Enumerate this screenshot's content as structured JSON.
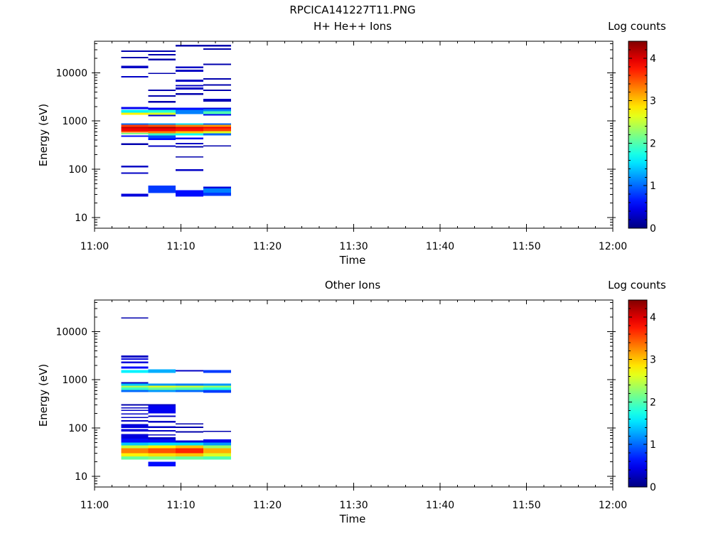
{
  "figure_title": "RPCICA141227T11.PNG",
  "chart_data": [
    {
      "type": "heatmap",
      "title": "H+ He++ Ions",
      "xlabel": "Time",
      "ylabel": "Energy (eV)",
      "colorbar_label": "Log counts",
      "x_ticks": [
        "11:00",
        "11:10",
        "11:20",
        "11:30",
        "11:40",
        "11:50",
        "12:00"
      ],
      "x_range_minutes": [
        0,
        60
      ],
      "y_ticks": [
        "10",
        "100",
        "1000",
        "10000"
      ],
      "y_scale": "log",
      "y_range": [
        6,
        45000
      ],
      "colorbar_ticks": [
        "0",
        "1",
        "2",
        "3",
        "4"
      ],
      "colorbar_range": [
        0,
        4.4
      ],
      "colormap": "jet",
      "columns": [
        {
          "t_start": 3.1,
          "t_end": 6.2,
          "cells": [
            [
              27,
              31,
              0.4
            ],
            [
              80,
              86,
              0.3
            ],
            [
              110,
              118,
              0.3
            ],
            [
              320,
              345,
              0.2
            ],
            [
              470,
              500,
              0.6
            ],
            [
              530,
              570,
              2.2
            ],
            [
              580,
              620,
              3.4
            ],
            [
              620,
              700,
              3.9
            ],
            [
              700,
              760,
              4.1
            ],
            [
              760,
              830,
              3.6
            ],
            [
              830,
              900,
              1.0
            ],
            [
              1350,
              1500,
              2.8
            ],
            [
              1500,
              1700,
              1.6
            ],
            [
              1750,
              1950,
              0.5
            ],
            [
              8000,
              8600,
              0.3
            ],
            [
              12500,
              14000,
              0.3
            ],
            [
              20000,
              21500,
              0.2
            ],
            [
              27000,
              29000,
              0.2
            ]
          ]
        },
        {
          "t_start": 6.2,
          "t_end": 9.4,
          "cells": [
            [
              32,
              46,
              0.8
            ],
            [
              290,
              310,
              0.3
            ],
            [
              400,
              440,
              0.6
            ],
            [
              440,
              500,
              0.9
            ],
            [
              500,
              560,
              1.9
            ],
            [
              560,
              620,
              3.3
            ],
            [
              620,
              700,
              3.9
            ],
            [
              700,
              760,
              4.2
            ],
            [
              760,
              830,
              3.5
            ],
            [
              830,
              900,
              1.2
            ],
            [
              1250,
              1350,
              0.4
            ],
            [
              1350,
              1500,
              2.6
            ],
            [
              1500,
              1700,
              1.8
            ],
            [
              1700,
              1900,
              0.5
            ],
            [
              2400,
              2600,
              0.2
            ],
            [
              3200,
              3400,
              0.2
            ],
            [
              4200,
              4500,
              0.2
            ],
            [
              9500,
              10000,
              0.2
            ],
            [
              18000,
              19500,
              0.2
            ],
            [
              23000,
              24500,
              0.2
            ],
            [
              27000,
              29000,
              0.2
            ]
          ]
        },
        {
          "t_start": 9.4,
          "t_end": 12.6,
          "cells": [
            [
              27,
              37,
              0.6
            ],
            [
              92,
              100,
              0.3
            ],
            [
              175,
              185,
              0.2
            ],
            [
              280,
              300,
              0.2
            ],
            [
              330,
              350,
              0.3
            ],
            [
              420,
              450,
              0.5
            ],
            [
              500,
              560,
              1.7
            ],
            [
              560,
              620,
              3.0
            ],
            [
              620,
              700,
              3.8
            ],
            [
              700,
              760,
              4.0
            ],
            [
              760,
              830,
              3.3
            ],
            [
              830,
              900,
              1.5
            ],
            [
              1400,
              1700,
              1.1
            ],
            [
              1700,
              1900,
              0.6
            ],
            [
              3500,
              3800,
              0.2
            ],
            [
              4500,
              5000,
              0.3
            ],
            [
              5200,
              5600,
              0.3
            ],
            [
              6500,
              7200,
              0.3
            ],
            [
              10500,
              11500,
              0.3
            ],
            [
              12500,
              13500,
              0.3
            ],
            [
              35000,
              38000,
              0.2
            ]
          ]
        },
        {
          "t_start": 12.6,
          "t_end": 15.8,
          "cells": [
            [
              28,
              33,
              0.8
            ],
            [
              33,
              40,
              1.1
            ],
            [
              40,
              44,
              0.4
            ],
            [
              300,
              315,
              0.2
            ],
            [
              500,
              560,
              1.0
            ],
            [
              560,
              620,
              2.6
            ],
            [
              620,
              700,
              3.6
            ],
            [
              700,
              760,
              3.9
            ],
            [
              760,
              830,
              3.2
            ],
            [
              830,
              900,
              1.0
            ],
            [
              1300,
              1400,
              0.5
            ],
            [
              1400,
              1600,
              2.0
            ],
            [
              1600,
              1750,
              1.1
            ],
            [
              1750,
              1900,
              0.4
            ],
            [
              2500,
              2700,
              0.2
            ],
            [
              2700,
              2900,
              0.3
            ],
            [
              4200,
              4500,
              0.2
            ],
            [
              5400,
              5800,
              0.2
            ],
            [
              7200,
              7700,
              0.2
            ],
            [
              14500,
              15500,
              0.2
            ],
            [
              30000,
              32000,
              0.2
            ],
            [
              35000,
              38000,
              0.2
            ]
          ]
        }
      ]
    },
    {
      "type": "heatmap",
      "title": "Other Ions",
      "xlabel": "Time",
      "ylabel": "Energy (eV)",
      "colorbar_label": "Log counts",
      "x_ticks": [
        "11:00",
        "11:10",
        "11:20",
        "11:30",
        "11:40",
        "11:50",
        "12:00"
      ],
      "x_range_minutes": [
        0,
        60
      ],
      "y_ticks": [
        "10",
        "100",
        "1000",
        "10000"
      ],
      "y_scale": "log",
      "y_range": [
        6,
        45000
      ],
      "colorbar_ticks": [
        "0",
        "1",
        "2",
        "3",
        "4"
      ],
      "colorbar_range": [
        0,
        4.4
      ],
      "colormap": "jet",
      "columns": [
        {
          "t_start": 3.1,
          "t_end": 6.2,
          "cells": [
            [
              22,
              26,
              2.1
            ],
            [
              26,
              30,
              2.8
            ],
            [
              30,
              38,
              3.3
            ],
            [
              38,
              44,
              2.5
            ],
            [
              44,
              50,
              1.4
            ],
            [
              50,
              60,
              0.6
            ],
            [
              60,
              75,
              0.4
            ],
            [
              85,
              95,
              0.4
            ],
            [
              100,
              120,
              0.4
            ],
            [
              135,
              145,
              0.3
            ],
            [
              160,
              170,
              0.3
            ],
            [
              190,
              200,
              0.3
            ],
            [
              230,
              240,
              0.3
            ],
            [
              260,
              270,
              0.3
            ],
            [
              290,
              310,
              0.2
            ],
            [
              560,
              620,
              1.0
            ],
            [
              620,
              690,
              1.9
            ],
            [
              690,
              760,
              2.4
            ],
            [
              760,
              830,
              1.4
            ],
            [
              830,
              900,
              0.3
            ],
            [
              1400,
              1600,
              1.6
            ],
            [
              1700,
              1900,
              0.6
            ],
            [
              2200,
              2400,
              0.4
            ],
            [
              2600,
              2800,
              0.4
            ],
            [
              2900,
              3200,
              0.3
            ],
            [
              18500,
              19500,
              0.2
            ]
          ]
        },
        {
          "t_start": 6.2,
          "t_end": 9.4,
          "cells": [
            [
              16,
              20,
              0.6
            ],
            [
              22,
              26,
              2.2
            ],
            [
              26,
              30,
              2.9
            ],
            [
              30,
              38,
              3.5
            ],
            [
              38,
              44,
              2.8
            ],
            [
              44,
              50,
              1.5
            ],
            [
              50,
              58,
              0.6
            ],
            [
              58,
              64,
              0.3
            ],
            [
              70,
              74,
              0.3
            ],
            [
              84,
              90,
              0.3
            ],
            [
              100,
              110,
              0.3
            ],
            [
              130,
              140,
              0.3
            ],
            [
              170,
              180,
              0.3
            ],
            [
              200,
              290,
              0.5
            ],
            [
              290,
              310,
              0.3
            ],
            [
              560,
              620,
              1.2
            ],
            [
              620,
              690,
              2.1
            ],
            [
              690,
              760,
              2.6
            ],
            [
              760,
              830,
              1.2
            ],
            [
              1400,
              1650,
              1.3
            ]
          ]
        },
        {
          "t_start": 9.4,
          "t_end": 12.6,
          "cells": [
            [
              22,
              26,
              2.1
            ],
            [
              26,
              30,
              3.0
            ],
            [
              30,
              38,
              3.7
            ],
            [
              38,
              44,
              3.0
            ],
            [
              44,
              50,
              1.5
            ],
            [
              50,
              55,
              0.4
            ],
            [
              80,
              86,
              0.2
            ],
            [
              100,
              108,
              0.2
            ],
            [
              120,
              126,
              0.2
            ],
            [
              560,
              620,
              1.0
            ],
            [
              620,
              690,
              2.0
            ],
            [
              690,
              760,
              2.5
            ],
            [
              760,
              830,
              1.1
            ],
            [
              1500,
              1600,
              0.3
            ]
          ]
        },
        {
          "t_start": 12.6,
          "t_end": 15.8,
          "cells": [
            [
              22,
              26,
              2.0
            ],
            [
              26,
              30,
              2.6
            ],
            [
              30,
              38,
              3.1
            ],
            [
              38,
              44,
              2.3
            ],
            [
              44,
              50,
              1.2
            ],
            [
              50,
              58,
              0.5
            ],
            [
              84,
              88,
              0.2
            ],
            [
              540,
              620,
              0.8
            ],
            [
              620,
              690,
              1.8
            ],
            [
              690,
              760,
              2.3
            ],
            [
              760,
              830,
              1.2
            ],
            [
              1400,
              1600,
              0.8
            ]
          ]
        }
      ]
    }
  ]
}
